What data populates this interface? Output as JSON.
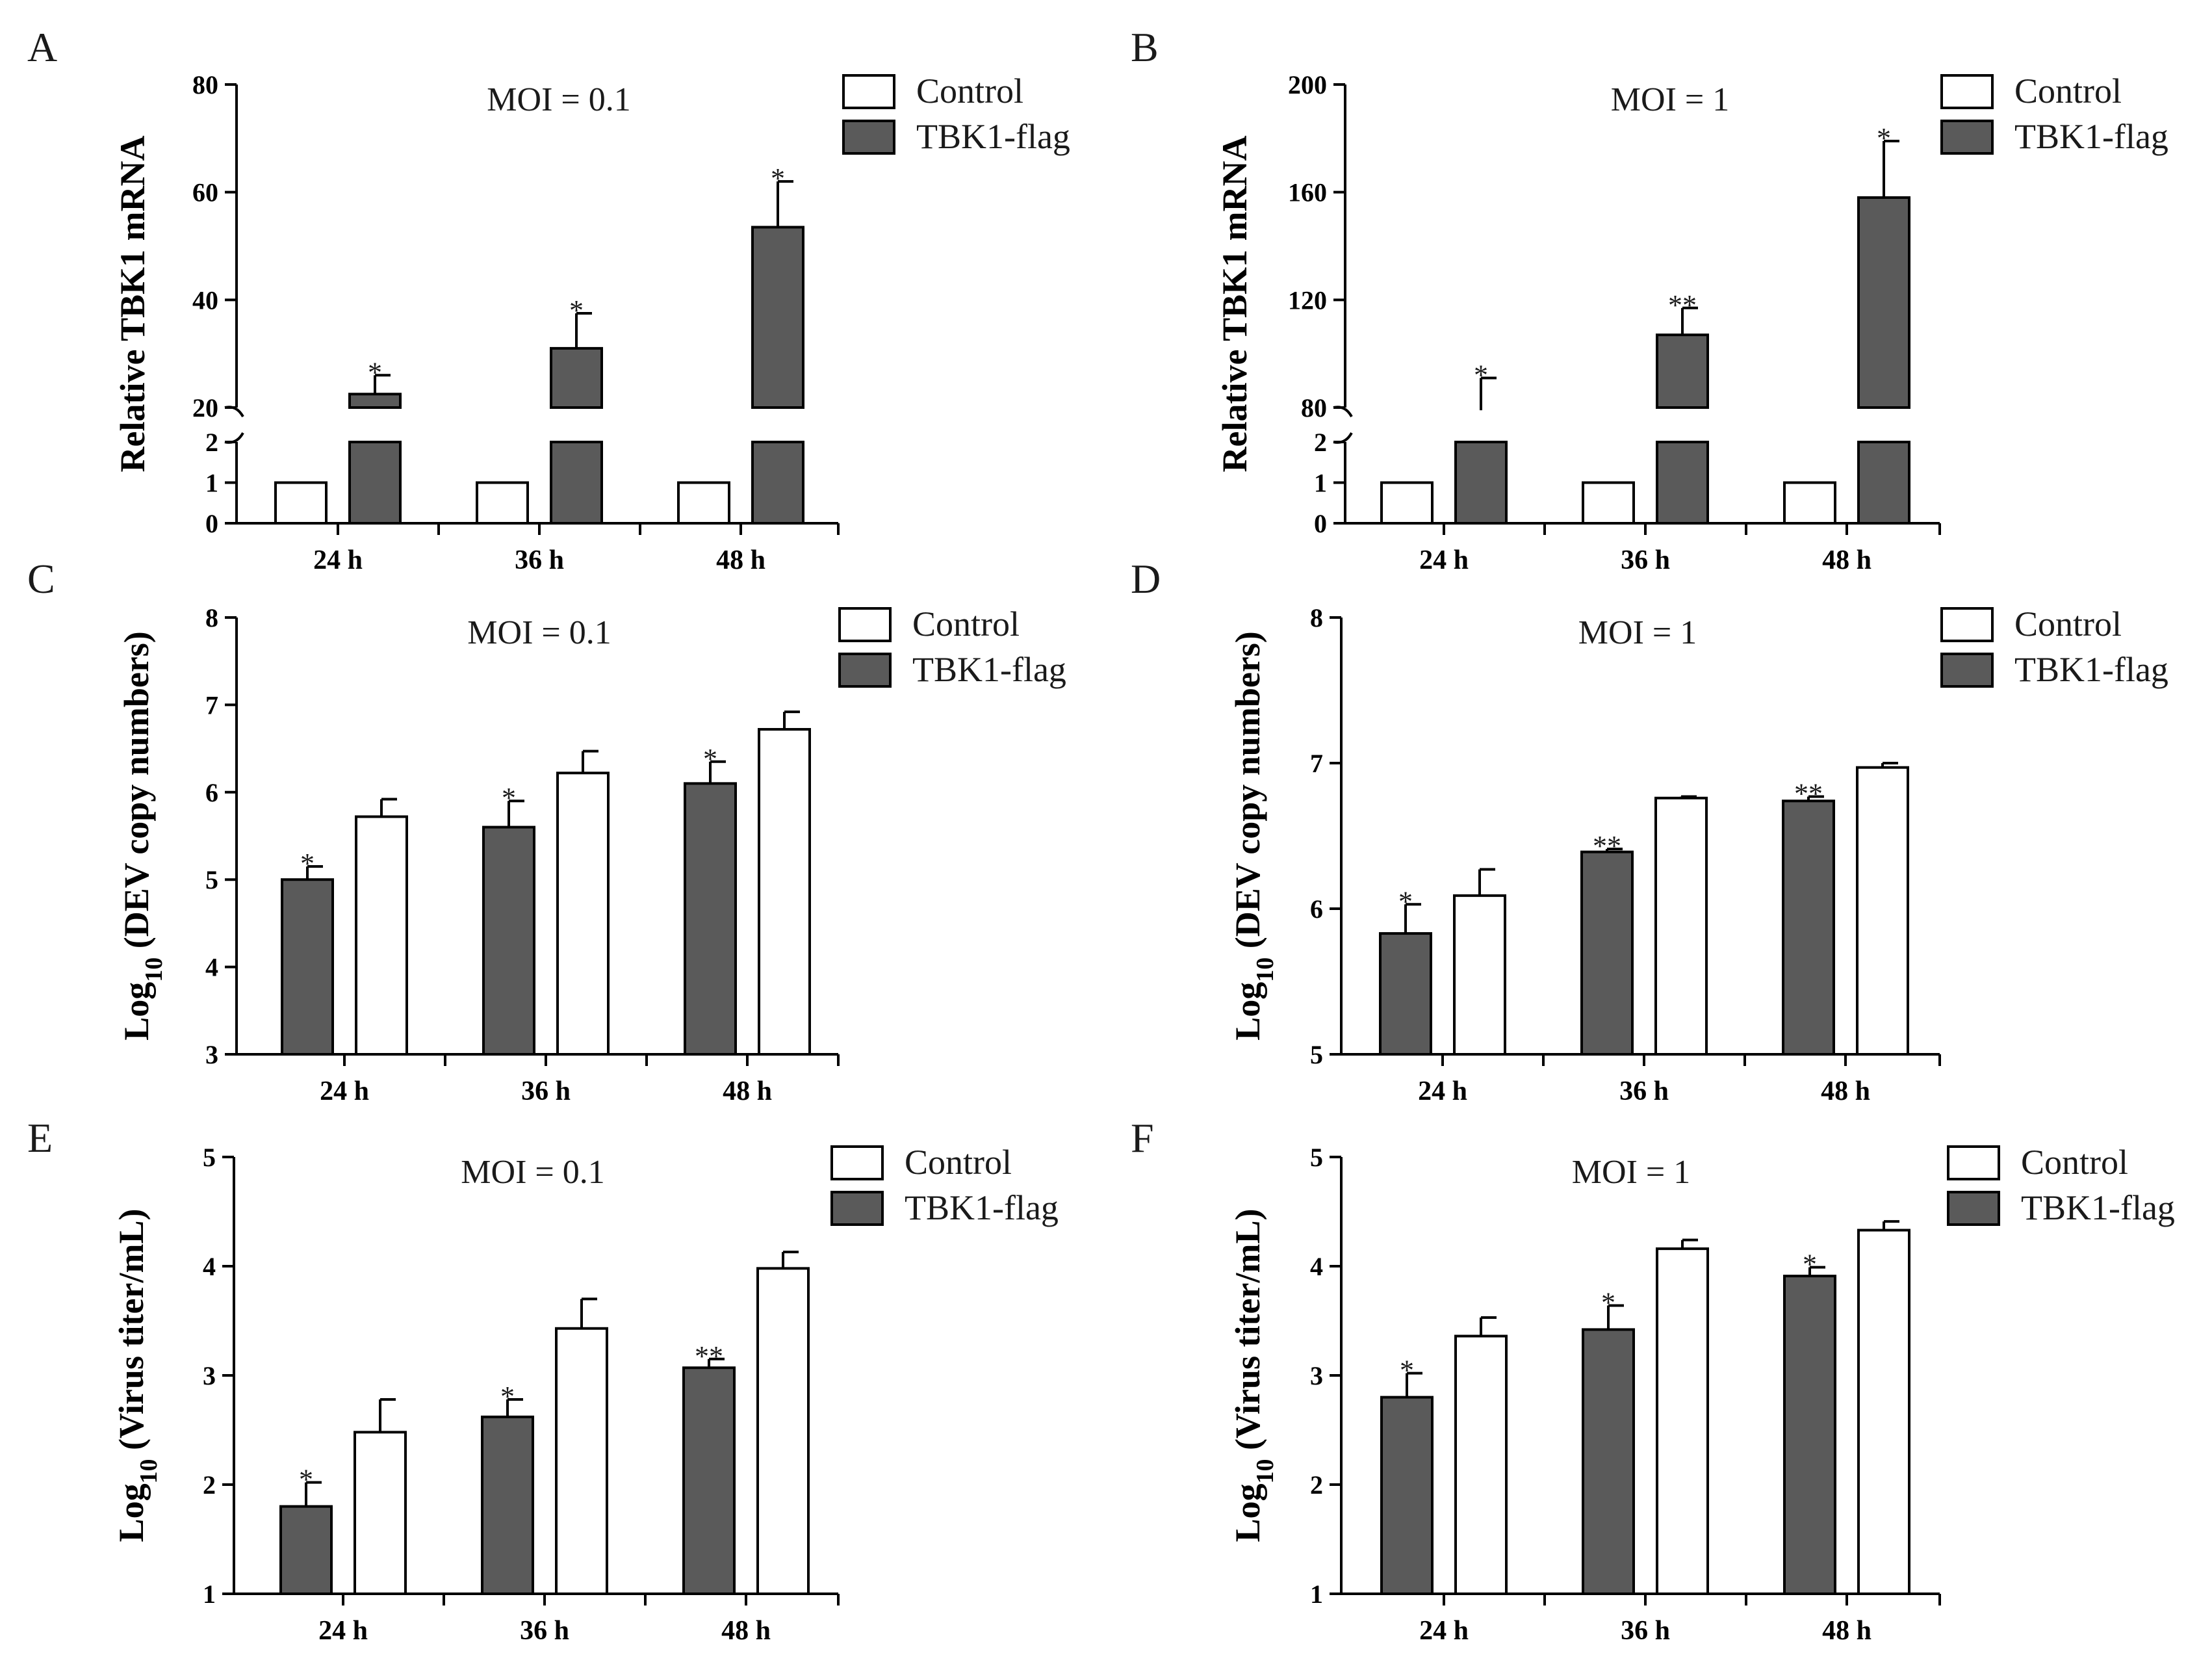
{
  "colors": {
    "tbk1": "#5a5a5a",
    "control": "#ffffff",
    "stroke": "#000000"
  },
  "chart_data": [
    {
      "id": "A",
      "letter": "A",
      "type": "bar",
      "title": "MOI = 0.1",
      "ylabel": "Relative TBK1 mRNA",
      "categories": [
        "24 h",
        "36 h",
        "48 h"
      ],
      "bar_order": [
        "control",
        "tbk1"
      ],
      "broken_axis": true,
      "lower": {
        "ylim": [
          0,
          2
        ],
        "ticks": [
          "0",
          "1",
          "2"
        ]
      },
      "upper": {
        "ylim": [
          20,
          80
        ],
        "ticks": [
          "20",
          "40",
          "60",
          "80"
        ]
      },
      "legend": [
        "Control",
        "TBK1-flag"
      ],
      "series": [
        {
          "name": "Control",
          "key": "control",
          "values": [
            1,
            1,
            1
          ],
          "errors": [
            0,
            0,
            0
          ],
          "sig": [
            "",
            "",
            ""
          ]
        },
        {
          "name": "TBK1-flag",
          "key": "tbk1",
          "values": [
            22.5,
            31,
            53.5
          ],
          "errors": [
            3.5,
            6.5,
            8.5
          ],
          "sig": [
            "*",
            "*",
            "*"
          ]
        }
      ]
    },
    {
      "id": "B",
      "letter": "B",
      "type": "bar",
      "title": "MOI = 1",
      "ylabel": "Relative TBK1 mRNA",
      "categories": [
        "24 h",
        "36 h",
        "48 h"
      ],
      "bar_order": [
        "control",
        "tbk1"
      ],
      "broken_axis": true,
      "lower": {
        "ylim": [
          0,
          2
        ],
        "ticks": [
          "0",
          "1",
          "2"
        ]
      },
      "upper": {
        "ylim": [
          80,
          200
        ],
        "ticks": [
          "80",
          "120",
          "160",
          "200"
        ]
      },
      "legend": [
        "Control",
        "TBK1-flag"
      ],
      "series": [
        {
          "name": "Control",
          "key": "control",
          "values": [
            1,
            1,
            1
          ],
          "errors": [
            0,
            0,
            0
          ],
          "sig": [
            "",
            "",
            ""
          ]
        },
        {
          "name": "TBK1-flag",
          "key": "tbk1",
          "values": [
            79,
            107,
            158
          ],
          "errors": [
            12,
            10,
            21
          ],
          "sig": [
            "*",
            "**",
            "*"
          ]
        }
      ]
    },
    {
      "id": "C",
      "letter": "C",
      "type": "bar",
      "title": "MOI = 0.1",
      "ylabel": "Log10 (DEV copy numbers)",
      "ylabel_base": "Log",
      "ylabel_sub": "10",
      "ylabel_rest": " (DEV copy numbers)",
      "categories": [
        "24 h",
        "36 h",
        "48 h"
      ],
      "bar_order": [
        "tbk1",
        "control"
      ],
      "ylim": [
        3,
        8
      ],
      "ticks": [
        "3",
        "4",
        "5",
        "6",
        "7",
        "8"
      ],
      "legend": [
        "Control",
        "TBK1-flag"
      ],
      "series": [
        {
          "name": "TBK1-flag",
          "key": "tbk1",
          "values": [
            5.0,
            5.6,
            6.1
          ],
          "errors": [
            0.15,
            0.3,
            0.25
          ],
          "sig": [
            "*",
            "*",
            "*"
          ]
        },
        {
          "name": "Control",
          "key": "control",
          "values": [
            5.72,
            6.22,
            6.72
          ],
          "errors": [
            0.2,
            0.25,
            0.2
          ],
          "sig": [
            "",
            "",
            ""
          ]
        }
      ]
    },
    {
      "id": "D",
      "letter": "D",
      "type": "bar",
      "title": "MOI = 1",
      "ylabel": "Log10 (DEV copy numbers)",
      "ylabel_base": "Log",
      "ylabel_sub": "10",
      "ylabel_rest": " (DEV copy numbers)",
      "categories": [
        "24 h",
        "36 h",
        "48 h"
      ],
      "bar_order": [
        "tbk1",
        "control"
      ],
      "ylim": [
        5,
        8
      ],
      "ticks": [
        "5",
        "6",
        "7",
        "8"
      ],
      "legend": [
        "Control",
        "TBK1-flag"
      ],
      "series": [
        {
          "name": "TBK1-flag",
          "key": "tbk1",
          "values": [
            5.83,
            6.39,
            6.74
          ],
          "errors": [
            0.2,
            0.02,
            0.03
          ],
          "sig": [
            "*",
            "**",
            "**"
          ]
        },
        {
          "name": "Control",
          "key": "control",
          "values": [
            6.09,
            6.76,
            6.97
          ],
          "errors": [
            0.18,
            0.01,
            0.03
          ],
          "sig": [
            "",
            "",
            ""
          ]
        }
      ]
    },
    {
      "id": "E",
      "letter": "E",
      "type": "bar",
      "title": "MOI = 0.1",
      "ylabel": "Log10 (Virus titer/mL)",
      "ylabel_base": "Log",
      "ylabel_sub": "10",
      "ylabel_rest": " (Virus titer/mL)",
      "categories": [
        "24 h",
        "36 h",
        "48 h"
      ],
      "bar_order": [
        "tbk1",
        "control"
      ],
      "ylim": [
        1,
        5
      ],
      "ticks": [
        "1",
        "2",
        "3",
        "4",
        "5"
      ],
      "legend": [
        "Control",
        "TBK1-flag"
      ],
      "series": [
        {
          "name": "TBK1-flag",
          "key": "tbk1",
          "values": [
            1.8,
            2.62,
            3.07
          ],
          "errors": [
            0.22,
            0.16,
            0.08
          ],
          "sig": [
            "*",
            "*",
            "**"
          ]
        },
        {
          "name": "Control",
          "key": "control",
          "values": [
            2.48,
            3.43,
            3.98
          ],
          "errors": [
            0.3,
            0.27,
            0.15
          ],
          "sig": [
            "",
            "",
            ""
          ]
        }
      ]
    },
    {
      "id": "F",
      "letter": "F",
      "type": "bar",
      "title": "MOI = 1",
      "ylabel": "Log10 (Virus titer/mL)",
      "ylabel_base": "Log",
      "ylabel_sub": "10",
      "ylabel_rest": " (Virus titer/mL)",
      "categories": [
        "24 h",
        "36 h",
        "48 h"
      ],
      "bar_order": [
        "tbk1",
        "control"
      ],
      "ylim": [
        1,
        5
      ],
      "ticks": [
        "1",
        "2",
        "3",
        "4",
        "5"
      ],
      "legend": [
        "Control",
        "TBK1-flag"
      ],
      "series": [
        {
          "name": "TBK1-flag",
          "key": "tbk1",
          "values": [
            2.8,
            3.42,
            3.91
          ],
          "errors": [
            0.22,
            0.22,
            0.08
          ],
          "sig": [
            "*",
            "*",
            "*"
          ]
        },
        {
          "name": "Control",
          "key": "control",
          "values": [
            3.36,
            4.16,
            4.33
          ],
          "errors": [
            0.17,
            0.08,
            0.08
          ],
          "sig": [
            "",
            "",
            ""
          ]
        }
      ]
    }
  ]
}
